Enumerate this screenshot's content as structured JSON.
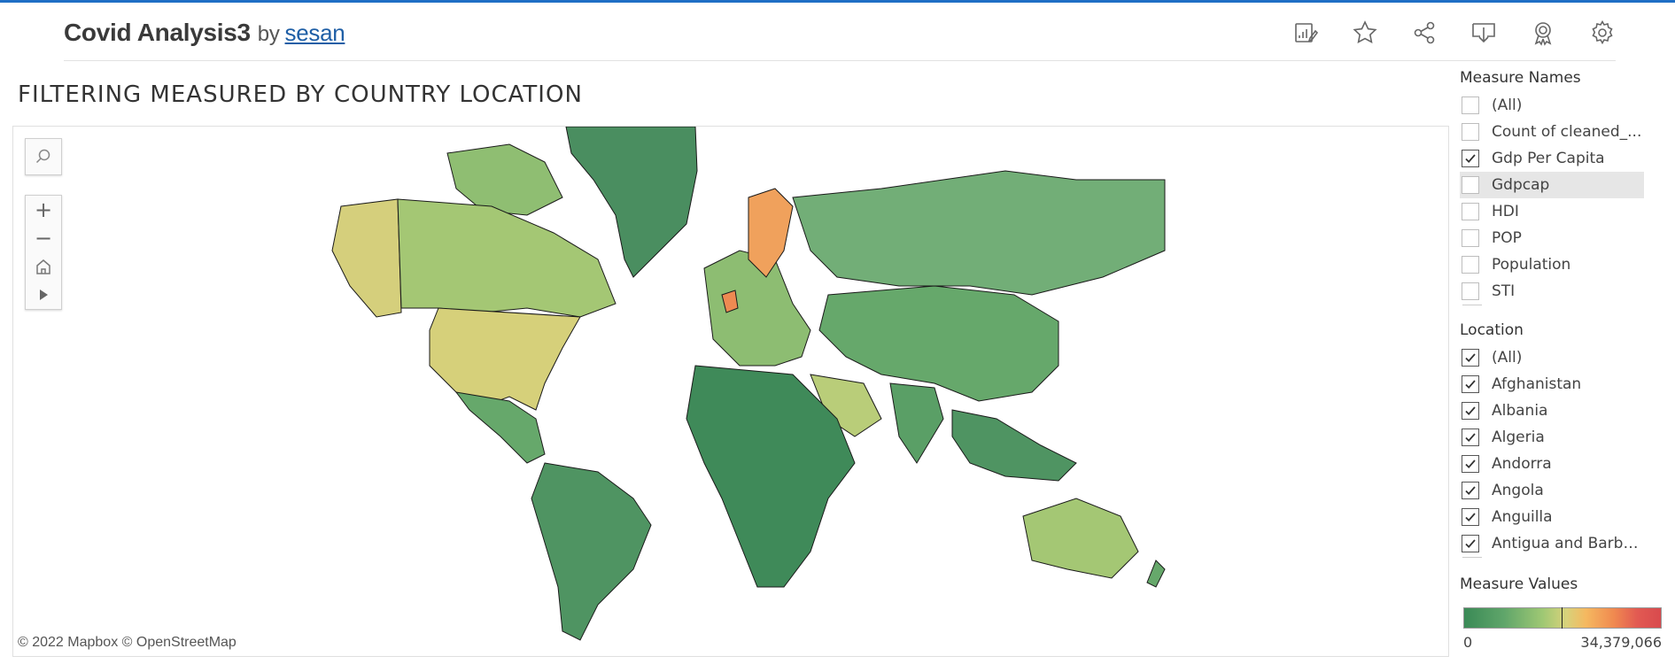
{
  "header": {
    "title": "Covid Analysis3",
    "by": "by",
    "author": "sesan",
    "tools": [
      "edit-data-icon",
      "favorite-star-icon",
      "share-icon",
      "download-icon",
      "award-icon",
      "settings-gear-icon"
    ]
  },
  "sheet": {
    "title": "FILTERING MEASURED BY COUNTRY LOCATION"
  },
  "map": {
    "attribution": "© 2022 Mapbox  © OpenStreetMap",
    "controls": {
      "zoom_in": "+",
      "zoom_out": "−"
    }
  },
  "filters": {
    "measure_names": {
      "title": "Measure Names",
      "items": [
        {
          "label": "(All)",
          "checked": false
        },
        {
          "label": "Count of cleaned_...",
          "checked": false
        },
        {
          "label": "Gdp Per Capita",
          "checked": true
        },
        {
          "label": "Gdpcap",
          "checked": false,
          "hover": true
        },
        {
          "label": "HDI",
          "checked": false
        },
        {
          "label": "POP",
          "checked": false
        },
        {
          "label": "Population",
          "checked": false
        },
        {
          "label": "STI",
          "checked": false
        }
      ]
    },
    "location": {
      "title": "Location",
      "items": [
        {
          "label": "(All)",
          "checked": true
        },
        {
          "label": "Afghanistan",
          "checked": true
        },
        {
          "label": "Albania",
          "checked": true
        },
        {
          "label": "Algeria",
          "checked": true
        },
        {
          "label": "Andorra",
          "checked": true
        },
        {
          "label": "Angola",
          "checked": true
        },
        {
          "label": "Anguilla",
          "checked": true
        },
        {
          "label": "Antigua and Barbu...",
          "checked": true
        }
      ]
    }
  },
  "legend": {
    "title": "Measure Values",
    "min": "0",
    "max": "34,379,066",
    "colors": [
      "#3a8a56",
      "#9fc874",
      "#d8d27b",
      "#f5b860",
      "#d84a4e"
    ]
  }
}
